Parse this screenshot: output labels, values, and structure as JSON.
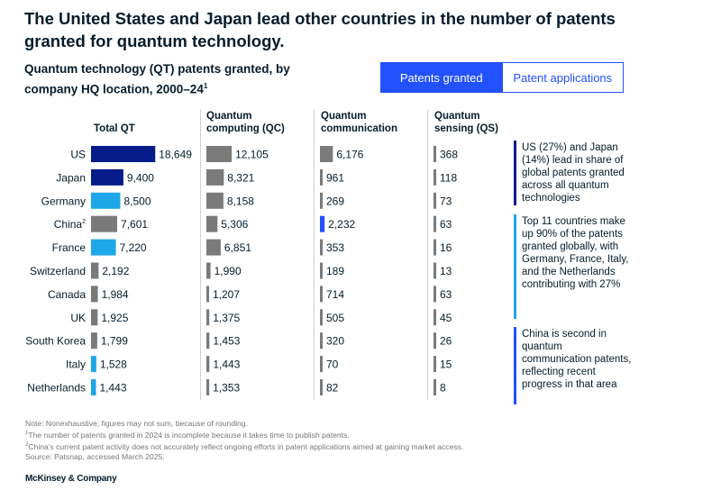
{
  "headline": "The United States and Japan lead other countries in the number of patents granted for quantum technology.",
  "subtitle": "Quantum technology (QT) patents granted, by company HQ location, 2000–24",
  "subtitle_sup": "1",
  "toggle": {
    "active_label": "Patents granted",
    "inactive_label": "Patent applications"
  },
  "colors": {
    "dark_navy": "#051c8a",
    "bright_blue": "#1ea7e8",
    "gray": "#7a7a7a",
    "accent_blue": "#2251ff"
  },
  "chart_data": {
    "type": "bar",
    "orientation": "horizontal",
    "categories": [
      "US",
      "Japan",
      "Germany",
      "China",
      "France",
      "Switzerland",
      "Canada",
      "UK",
      "South Korea",
      "Italy",
      "Netherlands"
    ],
    "category_display": [
      "US",
      "Japan",
      "Germany",
      "China",
      "France",
      "Switzerland",
      "Canada",
      "UK",
      "South Korea",
      "Italy",
      "Netherlands"
    ],
    "category_sup": [
      "",
      "",
      "",
      "2",
      "",
      "",
      "",
      "",
      "",
      "",
      ""
    ],
    "series": [
      {
        "name": "Total QT",
        "values": [
          18649,
          9400,
          8500,
          7601,
          7220,
          2192,
          1984,
          1925,
          1799,
          1528,
          1443
        ],
        "labels": [
          "18,649",
          "9,400",
          "8,500",
          "7,601",
          "7,220",
          "2,192",
          "1,984",
          "1,925",
          "1,799",
          "1,528",
          "1,443"
        ],
        "colors": [
          "dark_navy",
          "dark_navy",
          "bright_blue",
          "gray",
          "bright_blue",
          "gray",
          "gray",
          "gray",
          "gray",
          "bright_blue",
          "bright_blue"
        ]
      },
      {
        "name": "Quantum computing (QC)",
        "values": [
          12105,
          8321,
          8158,
          5306,
          6851,
          1990,
          1207,
          1375,
          1453,
          1443,
          1353
        ],
        "labels": [
          "12,105",
          "8,321",
          "8,158",
          "5,306",
          "6,851",
          "1,990",
          "1,207",
          "1,375",
          "1,453",
          "1,443",
          "1,353"
        ],
        "colors": [
          "gray",
          "gray",
          "gray",
          "gray",
          "gray",
          "gray",
          "gray",
          "gray",
          "gray",
          "gray",
          "gray"
        ]
      },
      {
        "name": "Quantum communication",
        "values": [
          6176,
          961,
          269,
          2232,
          353,
          189,
          714,
          505,
          320,
          70,
          82
        ],
        "labels": [
          "6,176",
          "961",
          "269",
          "2,232",
          "353",
          "189",
          "714",
          "505",
          "320",
          "70",
          "82"
        ],
        "colors": [
          "gray",
          "gray",
          "gray",
          "accent_blue",
          "gray",
          "gray",
          "gray",
          "gray",
          "gray",
          "gray",
          "gray"
        ]
      },
      {
        "name": "Quantum sensing (QS)",
        "values": [
          368,
          118,
          73,
          63,
          16,
          13,
          63,
          45,
          26,
          15,
          8
        ],
        "labels": [
          "368",
          "118",
          "73",
          "63",
          "16",
          "13",
          "63",
          "45",
          "26",
          "15",
          "8"
        ],
        "colors": [
          "gray",
          "gray",
          "gray",
          "gray",
          "gray",
          "gray",
          "gray",
          "gray",
          "gray",
          "gray",
          "gray"
        ]
      }
    ],
    "column_headers": [
      [
        "Total QT"
      ],
      [
        "Quantum",
        "computing (QC)"
      ],
      [
        "Quantum",
        "communication"
      ],
      [
        "Quantum",
        "sensing (QS)"
      ]
    ]
  },
  "notes": [
    {
      "text": "US (27%) and Japan (14%) lead in share of global patents granted across all quantum technologies",
      "color": "#051c8a"
    },
    {
      "text": "Top 11 countries make up 90% of the patents granted globally, with Germany, France, Italy, and the Netherlands contributing with 27%",
      "color": "#1ea7e8"
    },
    {
      "text": "China is second in quantum communication patents, reflecting recent progress in that area",
      "color": "#2251ff"
    }
  ],
  "footnotes": {
    "note": "Note: Nonexhaustive; figures may not sum, because of rounding.",
    "fn1_sup": "1",
    "fn1": "The number of patents granted in 2024 is incomplete because it takes time to publish patents.",
    "fn2_sup": "2",
    "fn2": "China's current patent activity does not accurately reflect ongoing efforts in patent applications aimed at gaining market access.",
    "source": "Source: Patsnap, accessed March 2025."
  },
  "brand": "McKinsey & Company"
}
